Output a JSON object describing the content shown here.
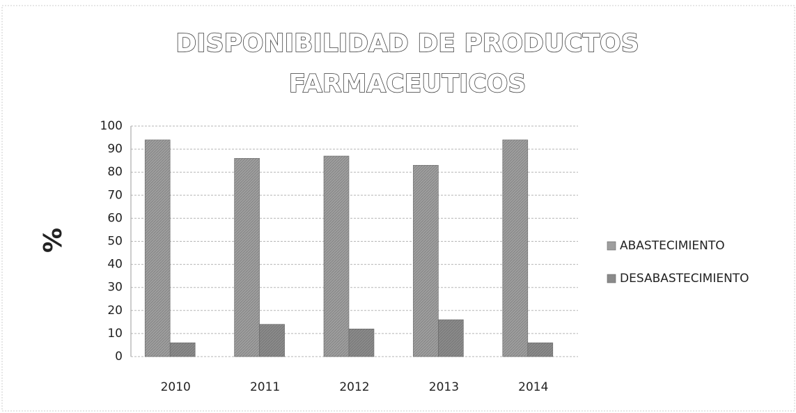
{
  "chart_data": {
    "type": "bar",
    "title": [
      "DISPONIBILIDAD DE PRODUCTOS",
      "FARMACEUTICOS"
    ],
    "y_label": "%",
    "categories": [
      "2010",
      "2011",
      "2012",
      "2013",
      "2014"
    ],
    "series": [
      {
        "name": "ABASTECIMIENTO",
        "color": "#9e9e9e",
        "values": [
          94,
          86,
          87,
          83,
          94
        ]
      },
      {
        "name": "DESABASTECIMIENTO",
        "color": "#8a8a8a",
        "values": [
          6,
          14,
          12,
          16,
          6
        ]
      }
    ],
    "ylim": [
      0,
      100
    ],
    "yticks": [
      0,
      10,
      20,
      30,
      40,
      50,
      60,
      70,
      80,
      90,
      100
    ],
    "grid": true,
    "legend": "right"
  }
}
